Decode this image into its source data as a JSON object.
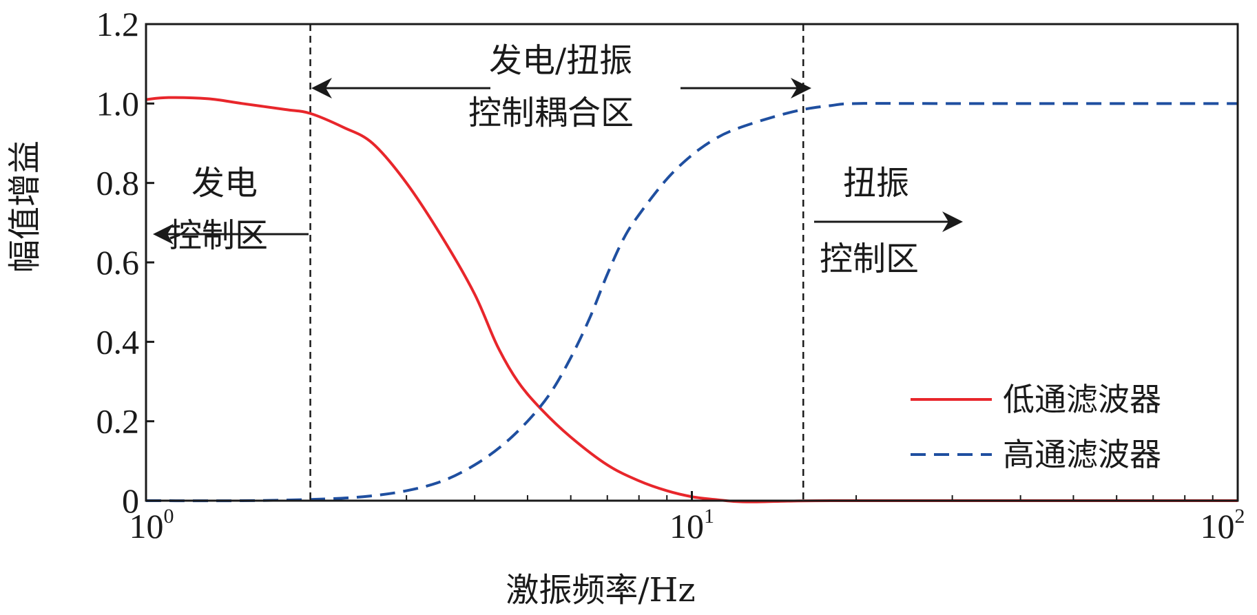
{
  "chart_data": {
    "type": "line",
    "xlabel": "激振频率/Hz",
    "ylabel": "幅值增益",
    "x_scale": "log",
    "xlim": [
      1,
      100
    ],
    "ylim": [
      0,
      1.2
    ],
    "x_ticks": [
      {
        "value": 1,
        "base": "10",
        "exp": "0"
      },
      {
        "value": 10,
        "base": "10",
        "exp": "1"
      },
      {
        "value": 100,
        "base": "10",
        "exp": "2"
      }
    ],
    "y_ticks": [
      {
        "value": 0,
        "label": "0"
      },
      {
        "value": 0.2,
        "label": "0.2"
      },
      {
        "value": 0.4,
        "label": "0.4"
      },
      {
        "value": 0.6,
        "label": "0.6"
      },
      {
        "value": 0.8,
        "label": "0.8"
      },
      {
        "value": 1.0,
        "label": "1.0"
      },
      {
        "value": 1.2,
        "label": "1.2"
      }
    ],
    "grid": false,
    "legend_position": "bottom-right",
    "series": [
      {
        "name": "低通滤波器",
        "color": "#e8262b",
        "dash": "solid",
        "points": [
          [
            1.0,
            1.01
          ],
          [
            1.1,
            1.015
          ],
          [
            1.3,
            1.012
          ],
          [
            1.5,
            1.0
          ],
          [
            1.8,
            0.985
          ],
          [
            2.0,
            0.975
          ],
          [
            2.3,
            0.94
          ],
          [
            2.6,
            0.9
          ],
          [
            3.0,
            0.8
          ],
          [
            3.5,
            0.66
          ],
          [
            4.0,
            0.52
          ],
          [
            4.4,
            0.39
          ],
          [
            4.8,
            0.3
          ],
          [
            5.3,
            0.23
          ],
          [
            6.0,
            0.16
          ],
          [
            7.0,
            0.09
          ],
          [
            8.0,
            0.05
          ],
          [
            9.0,
            0.025
          ],
          [
            10.0,
            0.01
          ],
          [
            11.0,
            0.003
          ],
          [
            12.0,
            -0.002
          ],
          [
            13.0,
            -0.003
          ],
          [
            15.0,
            -0.001
          ],
          [
            18.0,
            0.0
          ],
          [
            30.0,
            0.0
          ],
          [
            100.0,
            0.0
          ]
        ]
      },
      {
        "name": "高通滤波器",
        "color": "#1f4fa0",
        "dash": "dashed",
        "points": [
          [
            1.0,
            0.0
          ],
          [
            1.5,
            0.0
          ],
          [
            2.0,
            0.003
          ],
          [
            2.5,
            0.01
          ],
          [
            3.0,
            0.025
          ],
          [
            3.5,
            0.05
          ],
          [
            4.0,
            0.09
          ],
          [
            4.5,
            0.14
          ],
          [
            5.0,
            0.2
          ],
          [
            5.5,
            0.27
          ],
          [
            6.0,
            0.36
          ],
          [
            6.5,
            0.46
          ],
          [
            7.0,
            0.57
          ],
          [
            7.5,
            0.66
          ],
          [
            8.0,
            0.72
          ],
          [
            9.0,
            0.81
          ],
          [
            10.0,
            0.87
          ],
          [
            11.0,
            0.91
          ],
          [
            12.0,
            0.935
          ],
          [
            14.0,
            0.965
          ],
          [
            16.0,
            0.985
          ],
          [
            18.0,
            0.995
          ],
          [
            20.0,
            1.0
          ],
          [
            30.0,
            1.0
          ],
          [
            100.0,
            1.0
          ]
        ]
      }
    ],
    "vertical_lines": [
      {
        "x": 2.0,
        "style": "dashed"
      },
      {
        "x": 16.0,
        "style": "dashed"
      }
    ],
    "annotations": [
      {
        "id": "generation",
        "lines": [
          "发电",
          "控制区"
        ],
        "arrow": "left"
      },
      {
        "id": "coupling",
        "lines": [
          "发电/扭振",
          "控制耦合区"
        ],
        "arrow": "both"
      },
      {
        "id": "torsional",
        "lines": [
          "扭振",
          "控制区"
        ],
        "arrow": "right"
      }
    ]
  }
}
